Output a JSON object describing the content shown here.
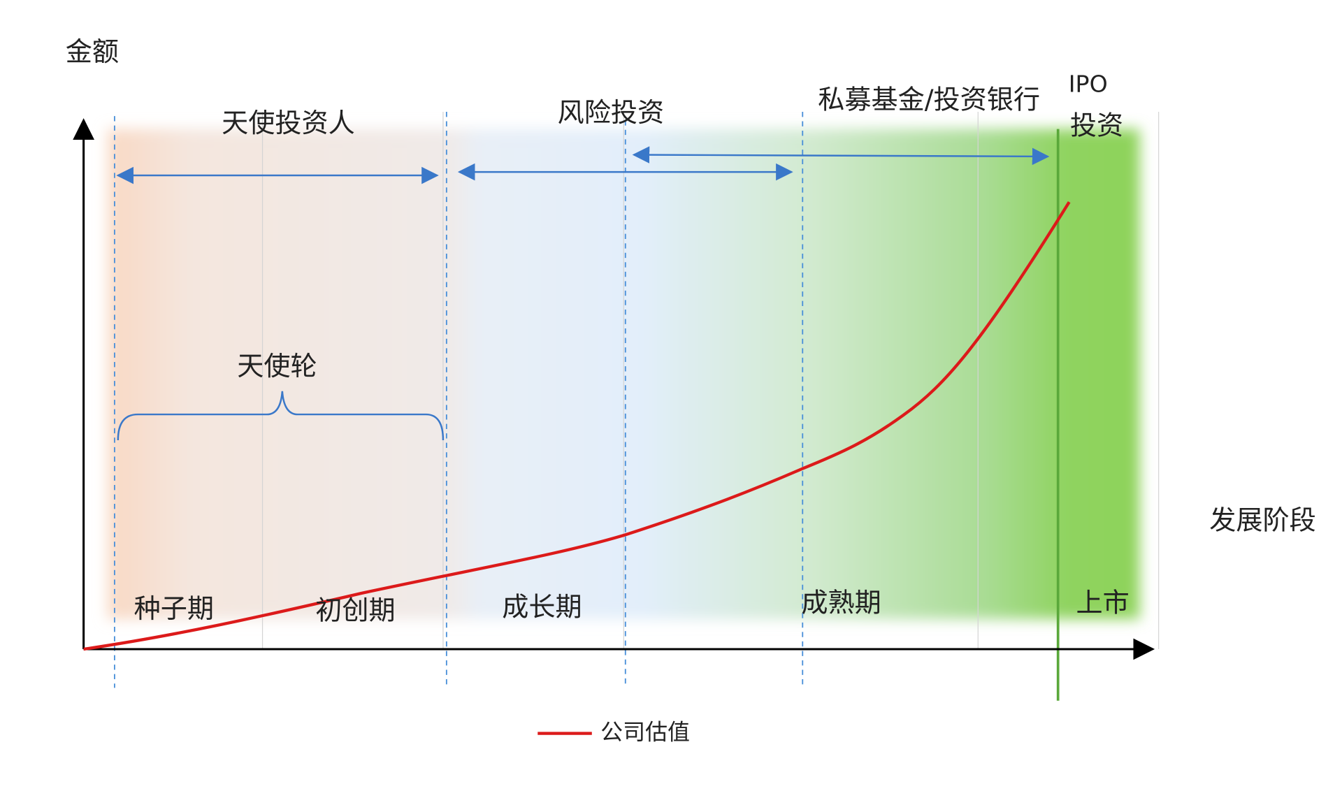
{
  "y_axis_label": "金额",
  "x_axis_label": "发展阶段",
  "investors": [
    "天使投资人",
    "风险投资",
    "私募基金/投资银行",
    "IPO",
    "投资"
  ],
  "bracket_label": "天使轮",
  "stages": [
    "种子期",
    "初创期",
    "成长期",
    "成熟期",
    "上市"
  ],
  "legend": "公司估值"
}
